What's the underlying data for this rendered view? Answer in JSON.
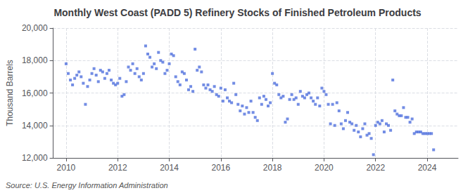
{
  "chart_data": {
    "type": "scatter",
    "title": "Monthly West Coast (PADD 5) Refinery Stocks of Finished Petroleum Products",
    "ylabel": "Thousand Barrels",
    "annotation": "Source: U.S. Energy Information Administration",
    "marker": "square",
    "grid": true,
    "xlim": [
      2009.5,
      2025.2
    ],
    "xticks": [
      2010,
      2012,
      2014,
      2016,
      2018,
      2020,
      2022,
      2024
    ],
    "ylim": [
      12000,
      20000
    ],
    "yticks": [
      {
        "value": 12000,
        "label": "12,000"
      },
      {
        "value": 14000,
        "label": "14,000"
      },
      {
        "value": 16000,
        "label": "16,000"
      },
      {
        "value": 18000,
        "label": "18,000"
      },
      {
        "value": 20000,
        "label": "20,000"
      }
    ],
    "x": [
      2010.0,
      2010.083,
      2010.167,
      2010.25,
      2010.333,
      2010.417,
      2010.5,
      2010.583,
      2010.667,
      2010.75,
      2010.833,
      2010.917,
      2011.0,
      2011.083,
      2011.167,
      2011.25,
      2011.333,
      2011.417,
      2011.5,
      2011.583,
      2011.667,
      2011.75,
      2011.833,
      2011.917,
      2012.0,
      2012.083,
      2012.167,
      2012.25,
      2012.333,
      2012.417,
      2012.5,
      2012.583,
      2012.667,
      2012.75,
      2012.833,
      2012.917,
      2013.0,
      2013.083,
      2013.167,
      2013.25,
      2013.333,
      2013.417,
      2013.5,
      2013.583,
      2013.667,
      2013.75,
      2013.833,
      2013.917,
      2014.0,
      2014.083,
      2014.167,
      2014.25,
      2014.333,
      2014.417,
      2014.5,
      2014.583,
      2014.667,
      2014.75,
      2014.833,
      2014.917,
      2015.0,
      2015.083,
      2015.167,
      2015.25,
      2015.333,
      2015.417,
      2015.5,
      2015.583,
      2015.667,
      2015.75,
      2015.833,
      2015.917,
      2016.0,
      2016.083,
      2016.167,
      2016.25,
      2016.333,
      2016.417,
      2016.5,
      2016.583,
      2016.667,
      2016.75,
      2016.833,
      2016.917,
      2017.0,
      2017.083,
      2017.167,
      2017.25,
      2017.333,
      2017.417,
      2017.5,
      2017.583,
      2017.667,
      2017.75,
      2017.833,
      2017.917,
      2018.0,
      2018.083,
      2018.167,
      2018.25,
      2018.333,
      2018.417,
      2018.5,
      2018.583,
      2018.667,
      2018.75,
      2018.833,
      2018.917,
      2019.0,
      2019.083,
      2019.167,
      2019.25,
      2019.333,
      2019.417,
      2019.5,
      2019.583,
      2019.667,
      2019.75,
      2019.833,
      2019.917,
      2020.0,
      2020.083,
      2020.167,
      2020.25,
      2020.333,
      2020.417,
      2020.5,
      2020.583,
      2020.667,
      2020.75,
      2020.833,
      2020.917,
      2021.0,
      2021.083,
      2021.167,
      2021.25,
      2021.333,
      2021.417,
      2021.5,
      2021.583,
      2021.667,
      2021.75,
      2021.833,
      2021.917,
      2022.0,
      2022.083,
      2022.167,
      2022.25,
      2022.333,
      2022.417,
      2022.5,
      2022.583,
      2022.667,
      2022.75,
      2022.833,
      2022.917,
      2023.0,
      2023.083,
      2023.167,
      2023.25,
      2023.333,
      2023.417,
      2023.5,
      2023.583,
      2023.667,
      2023.75,
      2023.833,
      2023.917,
      2024.0,
      2024.083,
      2024.167,
      2024.25
    ],
    "values": [
      17800,
      17200,
      16800,
      16500,
      16900,
      17100,
      17300,
      17000,
      16600,
      15300,
      16400,
      16800,
      17200,
      17500,
      17100,
      16700,
      17400,
      17300,
      16900,
      17200,
      17400,
      16800,
      16600,
      16500,
      16600,
      16900,
      15800,
      15900,
      16700,
      17600,
      17400,
      17800,
      17200,
      17500,
      17000,
      16800,
      17200,
      18900,
      18400,
      18200,
      17600,
      17800,
      17500,
      18500,
      18000,
      17900,
      17200,
      17400,
      17800,
      18400,
      18300,
      17000,
      16700,
      16500,
      17300,
      17200,
      16800,
      16200,
      16400,
      16100,
      18700,
      17400,
      17600,
      17300,
      16500,
      16300,
      16500,
      16200,
      16100,
      16400,
      15900,
      15800,
      16300,
      15500,
      16200,
      15700,
      15500,
      15400,
      16600,
      15900,
      15300,
      14900,
      15200,
      14700,
      15100,
      14800,
      15500,
      14800,
      14500,
      14300,
      15700,
      15300,
      15800,
      15600,
      15200,
      15400,
      17200,
      16600,
      16500,
      15900,
      15700,
      15800,
      14200,
      14400,
      15600,
      15900,
      15600,
      15700,
      15300,
      16100,
      15800,
      15700,
      15900,
      16000,
      15700,
      15500,
      15300,
      15700,
      15200,
      16300,
      16100,
      15900,
      15300,
      14100,
      15300,
      14000,
      15400,
      14900,
      14100,
      13800,
      14300,
      14800,
      14200,
      14100,
      13700,
      14000,
      13600,
      13300,
      13800,
      14100,
      13400,
      13500,
      13200,
      12200,
      14000,
      14200,
      14100,
      14300,
      13600,
      14100,
      14000,
      13700,
      16800,
      14900,
      14700,
      14600,
      14600,
      15100,
      14500,
      14500,
      14200,
      14400,
      13500,
      13600,
      13600,
      13600,
      13500,
      13500,
      13500,
      13500,
      13500,
      12500
    ]
  }
}
